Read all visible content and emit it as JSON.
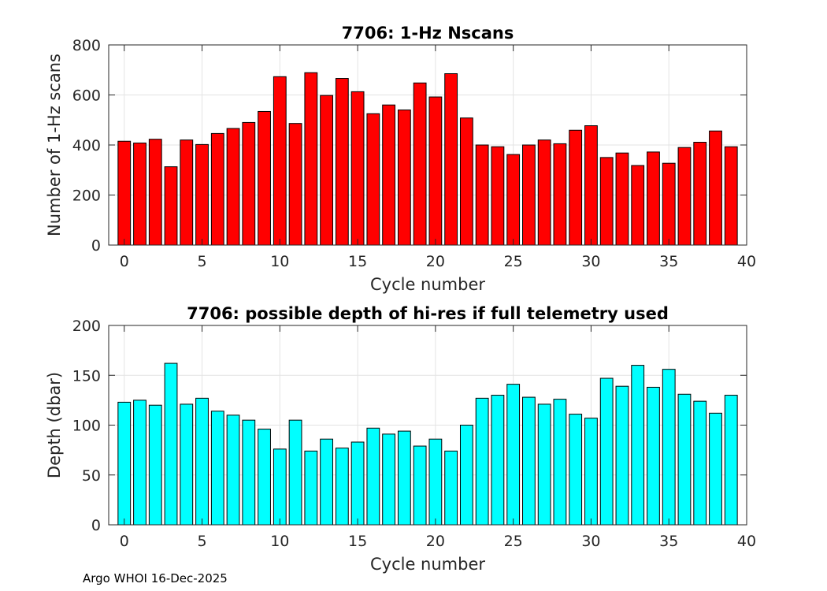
{
  "chart_data": [
    {
      "type": "bar",
      "title": "7706: 1-Hz Nscans",
      "xlabel": "Cycle number",
      "ylabel": "Number of 1-Hz scans",
      "x": [
        0,
        1,
        2,
        3,
        4,
        5,
        6,
        7,
        8,
        9,
        10,
        11,
        12,
        13,
        14,
        15,
        16,
        17,
        18,
        19,
        20,
        21,
        22,
        23,
        24,
        25,
        26,
        27,
        28,
        29,
        30,
        31,
        32,
        33,
        34,
        35,
        36,
        37,
        38,
        39
      ],
      "values": [
        415,
        408,
        423,
        313,
        420,
        402,
        446,
        466,
        490,
        534,
        673,
        486,
        689,
        598,
        666,
        613,
        525,
        560,
        540,
        648,
        592,
        685,
        508,
        400,
        393,
        362,
        400,
        420,
        405,
        459,
        477,
        350,
        368,
        318,
        372,
        327,
        390,
        411,
        456,
        393
      ],
      "xlim": [
        -1,
        40
      ],
      "ylim": [
        0,
        800
      ],
      "xticks": [
        0,
        5,
        10,
        15,
        20,
        25,
        30,
        35,
        40
      ],
      "yticks": [
        0,
        200,
        400,
        600,
        800
      ],
      "grid": true,
      "colors": {
        "bar": "#ff0000",
        "edge": "#000000"
      }
    },
    {
      "type": "bar",
      "title": "7706: possible depth of hi-res if full telemetry used",
      "xlabel": "Cycle number",
      "ylabel": "Depth (dbar)",
      "x": [
        0,
        1,
        2,
        3,
        4,
        5,
        6,
        7,
        8,
        9,
        10,
        11,
        12,
        13,
        14,
        15,
        16,
        17,
        18,
        19,
        20,
        21,
        22,
        23,
        24,
        25,
        26,
        27,
        28,
        29,
        30,
        31,
        32,
        33,
        34,
        35,
        36,
        37,
        38,
        39
      ],
      "values": [
        123,
        125,
        120,
        162,
        121,
        127,
        114,
        110,
        105,
        96,
        76,
        105,
        74,
        86,
        77,
        83,
        97,
        91,
        94,
        79,
        86,
        74,
        100,
        127,
        130,
        141,
        128,
        121,
        126,
        111,
        107,
        147,
        139,
        160,
        138,
        156,
        131,
        124,
        112,
        130
      ],
      "xlim": [
        -1,
        40
      ],
      "ylim": [
        0,
        200
      ],
      "xticks": [
        0,
        5,
        10,
        15,
        20,
        25,
        30,
        35,
        40
      ],
      "yticks": [
        0,
        50,
        100,
        150,
        200
      ],
      "grid": true,
      "colors": {
        "bar": "#00ffff",
        "edge": "#000000"
      }
    }
  ],
  "footer": {
    "text": "Argo WHOI 16-Dec-2025"
  }
}
